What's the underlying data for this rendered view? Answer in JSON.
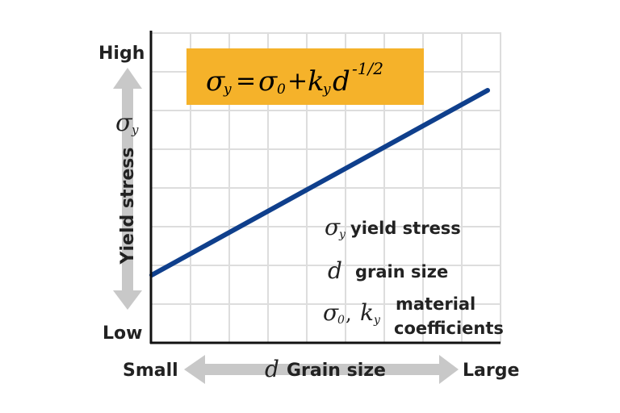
{
  "axes": {
    "y_high": "High",
    "y_low": "Low",
    "y_title": "Yield stress",
    "y_symbol": "σ",
    "y_symbol_sub": "y",
    "x_small": "Small",
    "x_large": "Large",
    "x_symbol": "d",
    "x_title": "Grain size"
  },
  "formula": {
    "sigma": "σ",
    "sub_y": "y",
    "equals": "=",
    "sigma0": "σ",
    "sub_0": "0",
    "plus": "+",
    "k": "k",
    "sub_k": "y",
    "d": "d",
    "exponent": "-1/2",
    "box_color": "#F5B22A"
  },
  "legend": [
    {
      "symbol": "σ",
      "sub": "y",
      "text": "yield stress"
    },
    {
      "symbol": "d",
      "sub": "",
      "text": "grain size"
    },
    {
      "symbol": "σ",
      "sub": "0",
      "symbol2": "k",
      "sub2": "y",
      "text_line1": "material",
      "text_line2": "coefficients"
    }
  ],
  "colors": {
    "line": "#0F3F8C",
    "axis": "#111111",
    "grid": "#DDDDDD",
    "arrow": "#C8C8C8"
  }
}
